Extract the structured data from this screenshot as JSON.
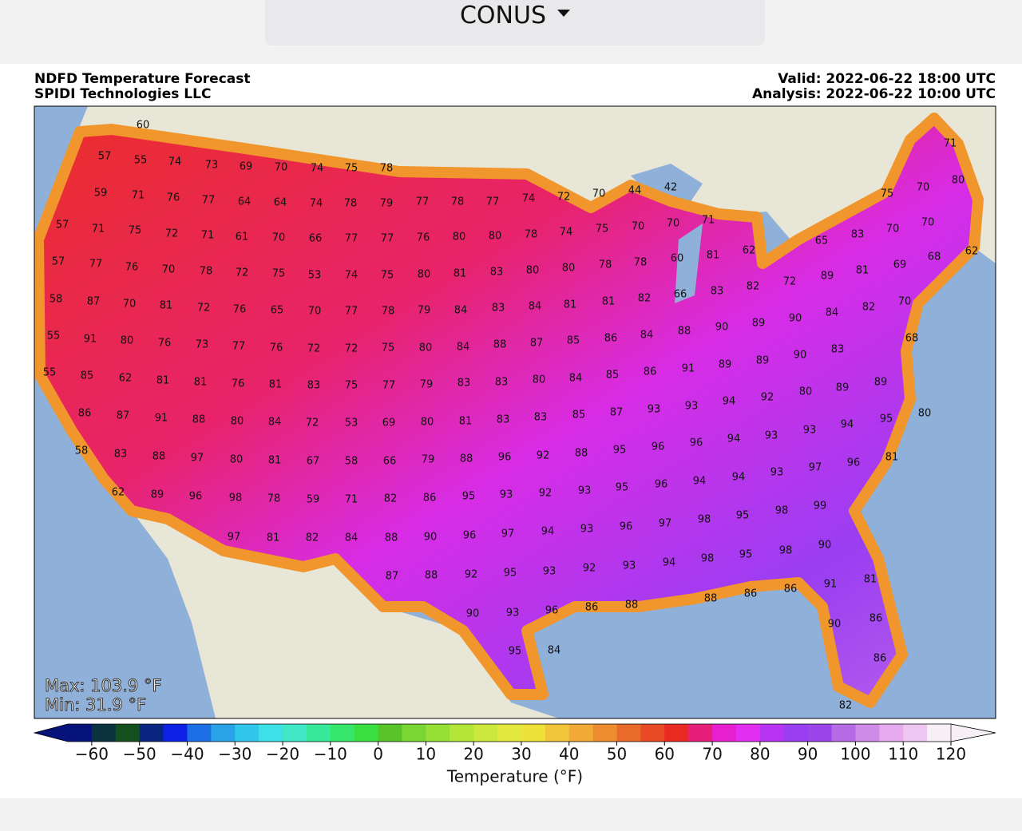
{
  "header": {
    "selector": "CONUS"
  },
  "map": {
    "title": "NDFD Temperature Forecast",
    "subtitle": "SPIDI Technologies LLC",
    "valid": "Valid: 2022-06-22 18:00 UTC",
    "analysis": "Analysis: 2022-06-22 10:00 UTC",
    "max": "Max: 103.9 °F",
    "min": "Min: 31.9 °F",
    "labels": [
      60,
      57,
      55,
      74,
      73,
      69,
      70,
      74,
      75,
      78,
      59,
      71,
      76,
      77,
      64,
      64,
      74,
      78,
      79,
      77,
      78,
      77,
      74,
      72,
      70,
      44,
      42,
      75,
      70,
      71,
      80,
      57,
      71,
      75,
      72,
      71,
      61,
      70,
      66,
      77,
      77,
      76,
      80,
      80,
      78,
      74,
      75,
      70,
      70,
      71,
      65,
      83,
      70,
      70,
      57,
      77,
      76,
      70,
      78,
      72,
      75,
      53,
      74,
      75,
      80,
      81,
      83,
      80,
      80,
      78,
      78,
      60,
      81,
      62,
      69,
      68,
      62,
      58,
      87,
      70,
      81,
      72,
      76,
      65,
      70,
      77,
      78,
      79,
      84,
      83,
      84,
      81,
      81,
      82,
      66,
      83,
      82,
      72,
      89,
      81,
      55,
      91,
      80,
      76,
      73,
      77,
      76,
      72,
      72,
      75,
      80,
      84,
      88,
      87,
      85,
      86,
      84,
      88,
      90,
      89,
      90,
      84,
      82,
      70,
      68,
      55,
      85,
      62,
      81,
      81,
      76,
      81,
      83,
      75,
      77,
      79,
      83,
      83,
      80,
      84,
      85,
      86,
      91,
      89,
      89,
      90,
      83,
      86,
      87,
      91,
      88,
      80,
      84,
      72,
      53,
      69,
      80,
      81,
      83,
      83,
      85,
      87,
      93,
      93,
      94,
      92,
      80,
      89,
      89,
      80,
      58,
      83,
      88,
      97,
      80,
      81,
      67,
      58,
      66,
      79,
      88,
      96,
      92,
      88,
      95,
      96,
      96,
      94,
      93,
      93,
      94,
      95,
      81,
      96,
      62,
      89,
      96,
      98,
      78,
      59,
      71,
      82,
      86,
      95,
      93,
      92,
      93,
      95,
      96,
      94,
      94,
      93,
      97,
      97,
      81,
      82,
      84,
      88,
      90,
      96,
      97,
      94,
      93,
      96,
      97,
      98,
      95,
      98,
      99,
      94,
      98,
      95,
      98,
      92,
      93,
      90,
      87,
      88,
      92,
      95,
      93,
      88,
      86,
      86,
      91,
      81,
      90,
      93,
      96,
      86,
      88,
      90,
      86,
      95,
      84,
      86,
      82
    ]
  },
  "colorbar": {
    "label": "Temperature (°F)",
    "lim": [
      -65,
      120
    ],
    "ticks": [
      {
        "value": -60,
        "label": "−60"
      },
      {
        "value": -50,
        "label": "−50"
      },
      {
        "value": -40,
        "label": "−40"
      },
      {
        "value": -30,
        "label": "−30"
      },
      {
        "value": -20,
        "label": "−20"
      },
      {
        "value": -10,
        "label": "−10"
      },
      0,
      10,
      20,
      30,
      40,
      50,
      60,
      70,
      80,
      90,
      100,
      110,
      120
    ],
    "colors": [
      "#06137a",
      "#0b3440",
      "#14501e",
      "#0a2580",
      "#0d22e6",
      "#1e6ee6",
      "#2aa2e8",
      "#33c6ec",
      "#3ee0e8",
      "#40e8c8",
      "#38e89a",
      "#36e66a",
      "#3ae040",
      "#58c42a",
      "#7ad632",
      "#96e036",
      "#b4e63a",
      "#cce83c",
      "#e2e83e",
      "#eee23a",
      "#f2c43a",
      "#f2aa36",
      "#ee8c30",
      "#ea6a2a",
      "#e84a26",
      "#e82a22",
      "#e6207a",
      "#e620d0",
      "#e22ef0",
      "#b634f2",
      "#9a3ef2",
      "#9a46ea",
      "#b66ae6",
      "#d08ae8",
      "#e6aaee",
      "#eec6f2",
      "#f6f0f6"
    ]
  }
}
